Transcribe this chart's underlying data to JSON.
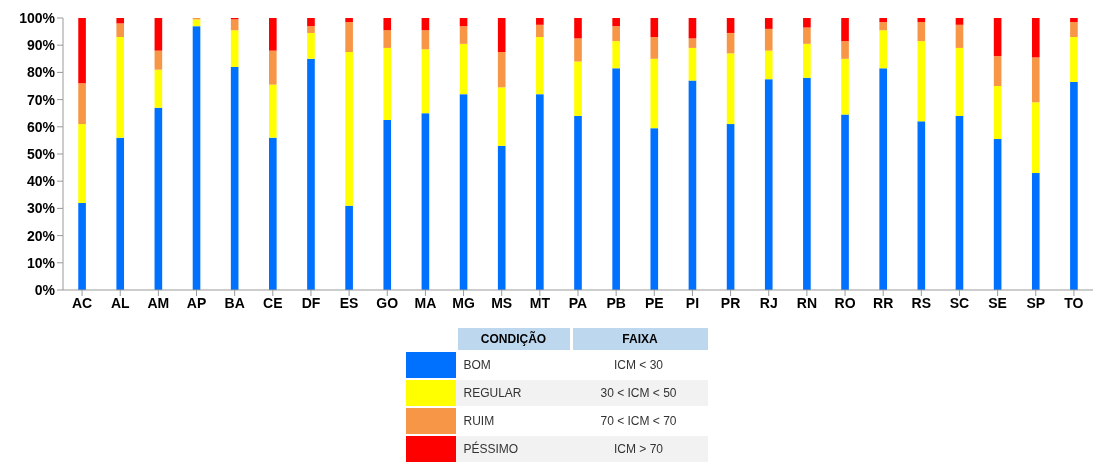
{
  "chart_data": {
    "type": "bar",
    "stacked": true,
    "legend": "bottom",
    "legend_title": "CONDIÇÃO",
    "annotations": [
      "FAIXA",
      "ICM < 30",
      "30 < ICM  < 50",
      "70 < ICM  < 70",
      "ICM > 70"
    ],
    "categories": [
      "AC",
      "AL",
      "AM",
      "AP",
      "BA",
      "CE",
      "DF",
      "ES",
      "GO",
      "MA",
      "MG",
      "MS",
      "MT",
      "PA",
      "PB",
      "PE",
      "PI",
      "PR",
      "RJ",
      "RN",
      "RO",
      "RR",
      "RS",
      "SC",
      "SE",
      "SP",
      "TO"
    ],
    "ylim": [
      0,
      100
    ],
    "yticks": [
      {
        "value": 0,
        "label": "0%"
      },
      {
        "value": 10,
        "label": "10%"
      },
      {
        "value": 20,
        "label": "20%"
      },
      {
        "value": 30,
        "label": "30%"
      },
      {
        "value": 40,
        "label": "40%"
      },
      {
        "value": 50,
        "label": "50%"
      },
      {
        "value": 60,
        "label": "60%"
      },
      {
        "value": 70,
        "label": "70%"
      },
      {
        "value": 80,
        "label": "80%"
      },
      {
        "value": 90,
        "label": "90%"
      },
      {
        "value": 100,
        "label": "100%"
      }
    ],
    "series": [
      {
        "name": "BOM",
        "color": "#0070ff",
        "values": [
          32,
          56,
          67,
          97,
          82,
          56,
          85,
          31,
          62.5,
          65,
          72,
          53,
          72,
          64,
          81.5,
          59.5,
          77,
          61,
          77.5,
          78,
          64.5,
          81.5,
          62,
          64,
          55.5,
          43,
          76.5
        ]
      },
      {
        "name": "REGULAR",
        "color": "#ffff00",
        "values": [
          29,
          37,
          14,
          2.5,
          13.5,
          19.5,
          9.5,
          56.5,
          26.5,
          23.5,
          18.5,
          21.5,
          21,
          20,
          10,
          25.5,
          12,
          26,
          10.5,
          12.5,
          20.5,
          14,
          29.5,
          25,
          19.5,
          26,
          16.5
        ]
      },
      {
        "name": "RUIM",
        "color": "#f79646",
        "values": [
          15,
          5,
          7,
          0.5,
          4,
          12.5,
          2.5,
          11,
          6.5,
          7,
          6.5,
          13,
          4.5,
          8.5,
          5.5,
          8,
          3.5,
          7.5,
          8,
          6,
          6.5,
          3,
          7,
          8.5,
          11,
          16.5,
          5.5
        ]
      },
      {
        "name": "PÉSSIMO",
        "color": "#ff0000",
        "values": [
          24,
          2,
          12,
          0,
          0.5,
          12,
          3,
          1.5,
          4.5,
          4.5,
          3,
          12.5,
          2.5,
          7.5,
          3,
          7,
          7.5,
          5.5,
          4,
          3.5,
          8.5,
          1.5,
          1.5,
          2.5,
          14,
          14.5,
          1.5
        ]
      }
    ]
  }
}
